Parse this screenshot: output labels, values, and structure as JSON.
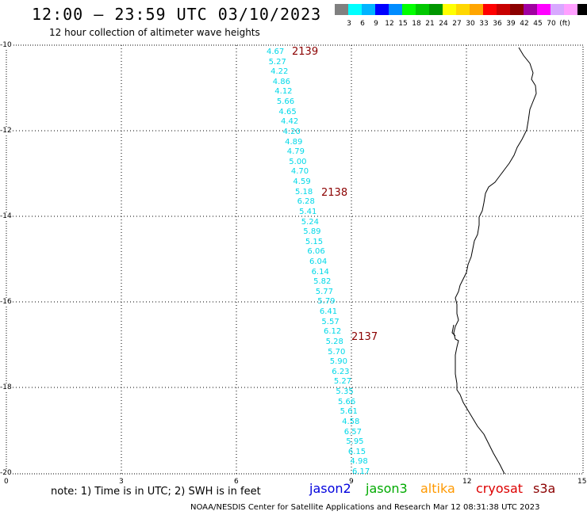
{
  "header": {
    "title": "12:00 – 23:59 UTC 03/10/2023",
    "subtitle": "12 hour collection of altimeter wave heights"
  },
  "legend": {
    "colors": [
      "#808080",
      "#00ffff",
      "#00b4ff",
      "#0000ff",
      "#008cff",
      "#00ff00",
      "#00c800",
      "#009600",
      "#ffff00",
      "#ffd700",
      "#ffa500",
      "#ff0000",
      "#c80000",
      "#8b0000",
      "#a000a0",
      "#ff00ff",
      "#d8a8ff",
      "#ffa0ff",
      "#000000"
    ],
    "labels": [
      "3",
      "6",
      "9",
      "12",
      "15",
      "18",
      "21",
      "24",
      "27",
      "30",
      "33",
      "36",
      "39",
      "42",
      "45",
      "70",
      "(ft)"
    ]
  },
  "axes": {
    "x_ticks": [
      "0",
      "3",
      "6",
      "9",
      "12",
      "15"
    ],
    "y_ticks": [
      "-10",
      "-12",
      "-14",
      "-16",
      "-18",
      "-20"
    ]
  },
  "track": {
    "color": "#00d8e8",
    "values": [
      "4.67",
      "5.27",
      "4.22",
      "4.86",
      "4.12",
      "5.66",
      "4.65",
      "4.42",
      "4.20",
      "4.89",
      "4.79",
      "5.00",
      "4.70",
      "4.59",
      "5.18",
      "6.28",
      "5.41",
      "5.24",
      "5.89",
      "5.15",
      "6.06",
      "6.04",
      "6.14",
      "5.82",
      "5.77",
      "5.79",
      "6.41",
      "5.57",
      "6.12",
      "5.28",
      "5.70",
      "5.90",
      "6.23",
      "5.27",
      "5.35",
      "5.66",
      "5.61",
      "4.58",
      "6.57",
      "5.95",
      "6.15",
      "4.98",
      "6.17"
    ]
  },
  "pass_labels": [
    "2139",
    "2138",
    "2137"
  ],
  "footer": {
    "note": "note: 1) Time is in UTC; 2) SWH is in feet",
    "satellites": [
      {
        "name": "jason2",
        "color": "#0000dd"
      },
      {
        "name": "jason3",
        "color": "#00aa00"
      },
      {
        "name": "altika",
        "color": "#ff9900"
      },
      {
        "name": "cryosat",
        "color": "#dd0000"
      },
      {
        "name": "s3a",
        "color": "#8b0000"
      }
    ],
    "credit": "NOAA/NESDIS Center for Satellite Applications and Research   Mar 12 08:31:38 UTC 2023"
  }
}
